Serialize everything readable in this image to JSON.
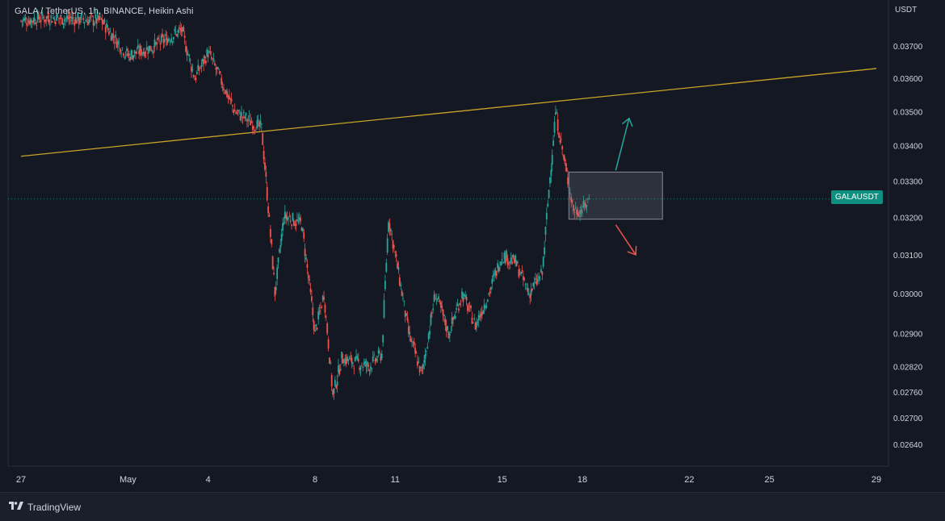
{
  "header": {
    "title": "GALA / TetherUS, 1h, BINANCE, Heikin Ashi",
    "currency": "USDT"
  },
  "ticker_badge": "GALAUSDT",
  "brand": {
    "name": "TradingView",
    "icon": "tradingview-logo-icon"
  },
  "colors": {
    "background": "#141823",
    "up": "#26a69a",
    "down": "#ef5350",
    "trendline": "#c9a227",
    "box_border": "#787b86",
    "axis_text": "#d1d4dc"
  },
  "chart_data": {
    "type": "candlestick",
    "title": "GALA / TetherUS, 1h, BINANCE, Heikin Ashi",
    "symbol": "GALAUSDT",
    "y_ticks": [
      "0.03700",
      "0.03600",
      "0.03500",
      "0.03400",
      "0.03300",
      "0.03200",
      "0.03100",
      "0.03000",
      "0.02900",
      "0.02820",
      "0.02760",
      "0.02700",
      "0.02640"
    ],
    "x_ticks": [
      "27",
      "May",
      "4",
      "8",
      "11",
      "15",
      "18",
      "22",
      "25",
      "29"
    ],
    "x_range": [
      "Apr 27",
      "May 29"
    ],
    "y_scale": "log",
    "grid": false,
    "current_price": 0.0325,
    "price_path": [
      {
        "date": "Apr 27",
        "price": 0.0378
      },
      {
        "date": "Apr 28",
        "price": 0.0379
      },
      {
        "date": "Apr 30",
        "price": 0.0378
      },
      {
        "date": "May 1",
        "price": 0.0367
      },
      {
        "date": "May 2",
        "price": 0.037
      },
      {
        "date": "May 3",
        "price": 0.0375
      },
      {
        "date": "May 3 12h",
        "price": 0.036
      },
      {
        "date": "May 4",
        "price": 0.0368
      },
      {
        "date": "May 5",
        "price": 0.035
      },
      {
        "date": "May 6",
        "price": 0.0345
      },
      {
        "date": "May 6 12h",
        "price": 0.03
      },
      {
        "date": "May 6 20h",
        "price": 0.032
      },
      {
        "date": "May 7",
        "price": 0.032
      },
      {
        "date": "May 7 12h",
        "price": 0.0318
      },
      {
        "date": "May 8",
        "price": 0.029
      },
      {
        "date": "May 8 08h",
        "price": 0.03
      },
      {
        "date": "May 8 16h",
        "price": 0.0275
      },
      {
        "date": "May 9",
        "price": 0.0284
      },
      {
        "date": "May 10",
        "price": 0.0282
      },
      {
        "date": "May 10 12h",
        "price": 0.0285
      },
      {
        "date": "May 10 18h",
        "price": 0.032
      },
      {
        "date": "May 11",
        "price": 0.031
      },
      {
        "date": "May 11 12h",
        "price": 0.029
      },
      {
        "date": "May 12",
        "price": 0.028
      },
      {
        "date": "May 12 12h",
        "price": 0.03
      },
      {
        "date": "May 13",
        "price": 0.029
      },
      {
        "date": "May 13 12h",
        "price": 0.03
      },
      {
        "date": "May 14",
        "price": 0.0292
      },
      {
        "date": "May 14 12h",
        "price": 0.03
      },
      {
        "date": "May 15",
        "price": 0.031
      },
      {
        "date": "May 15 12h",
        "price": 0.0308
      },
      {
        "date": "May 16",
        "price": 0.03
      },
      {
        "date": "May 16 12h",
        "price": 0.0305
      },
      {
        "date": "May 17",
        "price": 0.035
      },
      {
        "date": "May 17 08h",
        "price": 0.0335
      },
      {
        "date": "May 17 16h",
        "price": 0.0322
      },
      {
        "date": "May 18",
        "price": 0.0322
      },
      {
        "date": "May 18 06h",
        "price": 0.0325
      }
    ],
    "annotations": {
      "trendline": {
        "start": {
          "date": "Apr 27",
          "price": 0.0337
        },
        "end": {
          "date": "May 29",
          "price": 0.0363
        }
      },
      "box": {
        "start_date": "May 17 12h",
        "end_date": "May 21",
        "top": 0.03325,
        "bottom": 0.03195
      },
      "arrow_up": {
        "from": {
          "date": "May 19 06h",
          "price": 0.0333
        },
        "to": {
          "date": "May 19 18h",
          "price": 0.0348
        }
      },
      "arrow_down": {
        "from": {
          "date": "May 19 06h",
          "price": 0.0318
        },
        "to": {
          "date": "May 20",
          "price": 0.031
        }
      }
    }
  }
}
